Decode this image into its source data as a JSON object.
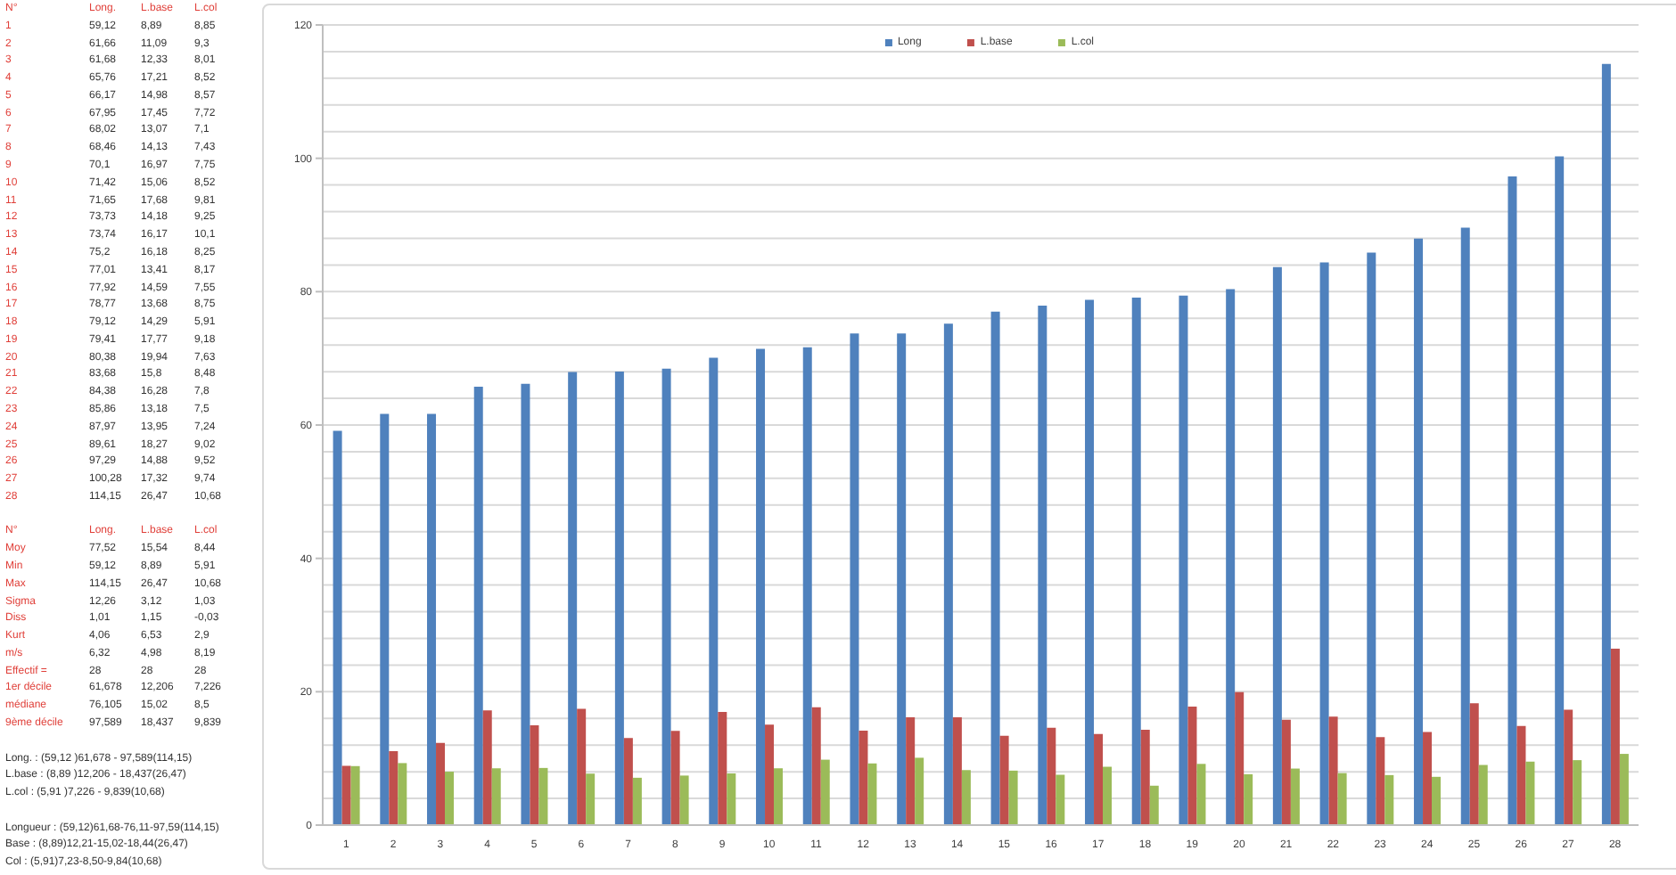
{
  "chart_data": {
    "type": "bar",
    "categories": [
      "1",
      "2",
      "3",
      "4",
      "5",
      "6",
      "7",
      "8",
      "9",
      "10",
      "11",
      "12",
      "13",
      "14",
      "15",
      "16",
      "17",
      "18",
      "19",
      "20",
      "21",
      "22",
      "23",
      "24",
      "25",
      "26",
      "27",
      "28"
    ],
    "series": [
      {
        "name": "Long",
        "color": "#4f81bd",
        "values": [
          59.12,
          61.66,
          61.68,
          65.76,
          66.17,
          67.95,
          68.02,
          68.46,
          70.1,
          71.42,
          71.65,
          73.73,
          73.74,
          75.2,
          77.01,
          77.92,
          78.77,
          79.12,
          79.41,
          80.38,
          83.68,
          84.38,
          85.86,
          87.97,
          89.61,
          97.29,
          100.28,
          114.15
        ]
      },
      {
        "name": "L.base",
        "color": "#c0504d",
        "values": [
          8.89,
          11.09,
          12.33,
          17.21,
          14.98,
          17.45,
          13.07,
          14.13,
          16.97,
          15.06,
          17.68,
          14.18,
          16.17,
          16.18,
          13.41,
          14.59,
          13.68,
          14.29,
          17.77,
          19.94,
          15.8,
          16.28,
          13.18,
          13.95,
          18.27,
          14.88,
          17.32,
          26.47
        ]
      },
      {
        "name": "L.col",
        "color": "#9bbb59",
        "values": [
          8.85,
          9.3,
          8.01,
          8.52,
          8.57,
          7.72,
          7.1,
          7.43,
          7.75,
          8.52,
          9.81,
          9.25,
          10.1,
          8.25,
          8.17,
          7.55,
          8.75,
          5.91,
          9.18,
          7.63,
          8.48,
          7.8,
          7.5,
          7.24,
          9.02,
          9.52,
          9.74,
          10.68
        ]
      }
    ],
    "ylim": [
      0,
      120
    ],
    "yticks": [
      0,
      {
        "value": 4,
        "label": null
      },
      {
        "value": 8,
        "label": null
      },
      {
        "value": 12,
        "label": null
      },
      {
        "value": 16,
        "label": null
      },
      20,
      {
        "value": 24,
        "label": null
      },
      {
        "value": 28,
        "label": null
      },
      {
        "value": 32,
        "label": null
      },
      {
        "value": 36,
        "label": null
      },
      40,
      {
        "value": 44,
        "label": null
      },
      {
        "value": 48,
        "label": null
      },
      {
        "value": 52,
        "label": null
      },
      {
        "value": 56,
        "label": null
      },
      60,
      {
        "value": 64,
        "label": null
      },
      {
        "value": 68,
        "label": null
      },
      {
        "value": 72,
        "label": null
      },
      {
        "value": 76,
        "label": null
      },
      80,
      {
        "value": 84,
        "label": null
      },
      {
        "value": 88,
        "label": null
      },
      {
        "value": 92,
        "label": null
      },
      {
        "value": 96,
        "label": null
      },
      100,
      {
        "value": 104,
        "label": null
      },
      {
        "value": 108,
        "label": null
      },
      {
        "value": 112,
        "label": null
      },
      {
        "value": 116,
        "label": null
      },
      120
    ],
    "grid": "y",
    "legend": "top",
    "annotations": [
      "N°",
      "Long.",
      "L.base",
      "L.col",
      "59,12",
      "8,89",
      "8,85",
      "61,66",
      "11,09",
      "9,3",
      "61,68",
      "12,33",
      "8,01",
      "65,76",
      "17,21",
      "8,52",
      "66,17",
      "14,98",
      "8,57",
      "67,95",
      "17,45",
      "7,72",
      "68,02",
      "13,07",
      "7,1",
      "68,46",
      "14,13",
      "7,43",
      "70,1",
      "16,97",
      "7,75",
      "71,42",
      "15,06",
      "8,52",
      "71,65",
      "17,68",
      "9,81",
      "73,73",
      "14,18",
      "9,25",
      "73,74",
      "16,17",
      "10,1",
      "75,2",
      "16,18",
      "8,25",
      "77,01",
      "13,41",
      "8,17",
      "77,92",
      "14,59",
      "7,55",
      "78,77",
      "13,68",
      "8,75",
      "79,12",
      "14,29",
      "5,91",
      "79,41",
      "17,77",
      "9,18",
      "80,38",
      "19,94",
      "7,63",
      "83,68",
      "15,8",
      "8,48",
      "84,38",
      "16,28",
      "7,8",
      "85,86",
      "13,18",
      "7,5",
      "87,97",
      "13,95",
      "7,24",
      "89,61",
      "18,27",
      "9,02",
      "97,29",
      "14,88",
      "9,52",
      "100,28",
      "17,32",
      "9,74",
      "114,15",
      "26,47",
      "10,68",
      "N°",
      "Long.",
      "L.base",
      "L.col",
      "Moy",
      "77,52",
      "15,54",
      "8,44",
      "Min",
      "59,12",
      "8,89",
      "5,91",
      "Max",
      "114,15",
      "26,47",
      "10,68",
      "Sigma",
      "12,26",
      "3,12",
      "1,03",
      "Diss",
      "1,01",
      "1,15",
      "-0,03",
      "Kurt",
      "4,06",
      "6,53",
      "2,9",
      "m/s",
      "6,32",
      "4,98",
      "8,19",
      "Effectif =",
      "28",
      "28",
      "28",
      "1er décile",
      "61,678",
      "12,206",
      "7,226",
      "médiane",
      "76,105",
      "15,02",
      "8,5",
      "9ème décile",
      "97,589",
      "18,437",
      "9,839",
      "Long. : (59,12 )61,678 - 97,589(114,15)",
      "L.base : (8,89 )12,206 - 18,437(26,47)",
      "L.col : (5,91 )7,226 - 9,839(10,68)",
      "Longueur : (59,12)61,68-76,11-97,59(114,15)",
      "Base : (8,89)12,21-15,02-18,44(26,47)",
      "Col : (5,91)7,23-8,50-9,84(10,68)"
    ]
  }
}
